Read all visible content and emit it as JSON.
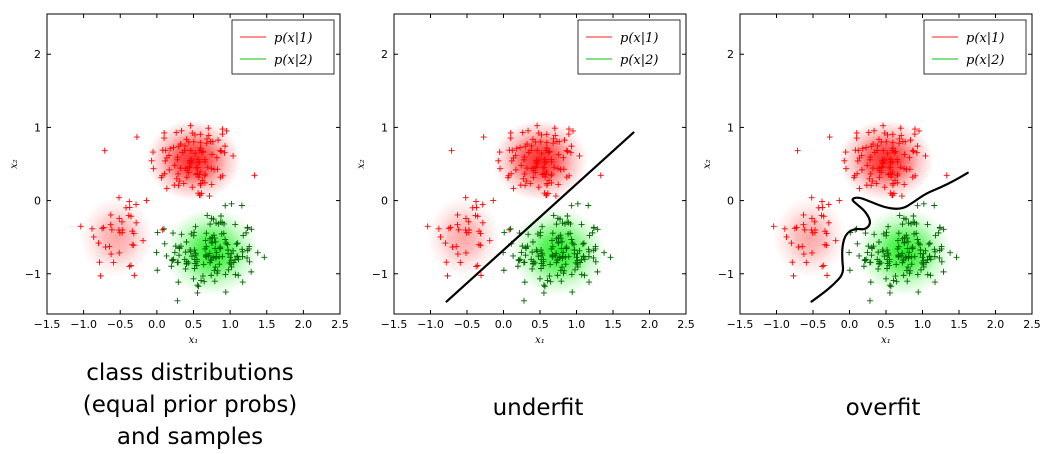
{
  "chart_data": [
    {
      "type": "scatter",
      "xlim": [
        -1.5,
        2.5
      ],
      "ylim": [
        -1.55,
        2.55
      ],
      "xticks": [
        -1.5,
        -1.0,
        -0.5,
        0.0,
        0.5,
        1.0,
        1.5,
        2.0,
        2.5
      ],
      "yticks": [
        -1,
        0,
        1,
        2
      ],
      "xtick_labels": [
        "−1.5",
        "−1.0",
        "−0.5",
        "0.0",
        "0.5",
        "1.0",
        "1.5",
        "2.0",
        "2.5"
      ],
      "ytick_labels": [
        "−1",
        "0",
        "1",
        "2"
      ],
      "xlabel": "x₁",
      "ylabel": "x₂",
      "legend": [
        {
          "label": "p(x|1)",
          "color": "#ff6b6b"
        },
        {
          "label": "p(x|2)",
          "color": "#5cd65c"
        }
      ],
      "legend_position": "top-right",
      "density_blobs": [
        {
          "class": 1,
          "cx": 0.5,
          "cy": 0.55,
          "rx": 0.65,
          "ry": 0.55,
          "color": "#ff0000",
          "opacity": 0.85
        },
        {
          "class": 1,
          "cx": -0.55,
          "cy": -0.5,
          "rx": 0.5,
          "ry": 0.55,
          "color": "#ff0000",
          "opacity": 0.35
        },
        {
          "class": 2,
          "cx": 0.75,
          "cy": -0.7,
          "rx": 0.65,
          "ry": 0.6,
          "color": "#00ee00",
          "opacity": 0.85
        }
      ],
      "samples": {
        "class1": {
          "color": "#ff0000",
          "clusters": [
            {
              "cx": 0.5,
              "cy": 0.55,
              "sx": 0.3,
              "sy": 0.28,
              "n": 110
            },
            {
              "cx": -0.5,
              "cy": -0.45,
              "sx": 0.25,
              "sy": 0.33,
              "n": 40
            }
          ]
        },
        "class2": {
          "color": "#006400",
          "clusters": [
            {
              "cx": 0.75,
              "cy": -0.72,
              "sx": 0.3,
              "sy": 0.28,
              "n": 150
            }
          ]
        }
      },
      "boundary": null,
      "caption": [
        "class distributions",
        "(equal prior probs)",
        "and samples"
      ]
    },
    {
      "type": "scatter",
      "xlim": [
        -1.5,
        2.5
      ],
      "ylim": [
        -1.55,
        2.55
      ],
      "xticks": [
        -1.5,
        -1.0,
        -0.5,
        0.0,
        0.5,
        1.0,
        1.5,
        2.0,
        2.5
      ],
      "yticks": [
        -1,
        0,
        1,
        2
      ],
      "xtick_labels": [
        "−1.5",
        "−1.0",
        "−0.5",
        "0.0",
        "0.5",
        "1.0",
        "1.5",
        "2.0",
        "2.5"
      ],
      "ytick_labels": [
        "−1",
        "0",
        "1",
        "2"
      ],
      "xlabel": "x₁",
      "ylabel": "x₂",
      "legend": [
        {
          "label": "p(x|1)",
          "color": "#ff6b6b"
        },
        {
          "label": "p(x|2)",
          "color": "#5cd65c"
        }
      ],
      "legend_position": "top-right",
      "density_blobs": [
        {
          "class": 1,
          "cx": 0.5,
          "cy": 0.55,
          "rx": 0.65,
          "ry": 0.55,
          "color": "#ff0000",
          "opacity": 0.85
        },
        {
          "class": 1,
          "cx": -0.55,
          "cy": -0.5,
          "rx": 0.5,
          "ry": 0.55,
          "color": "#ff0000",
          "opacity": 0.35
        },
        {
          "class": 2,
          "cx": 0.75,
          "cy": -0.7,
          "rx": 0.65,
          "ry": 0.6,
          "color": "#00ee00",
          "opacity": 0.85
        }
      ],
      "samples": {
        "class1": {
          "color": "#ff0000",
          "clusters": [
            {
              "cx": 0.5,
              "cy": 0.55,
              "sx": 0.3,
              "sy": 0.28,
              "n": 110
            },
            {
              "cx": -0.5,
              "cy": -0.45,
              "sx": 0.25,
              "sy": 0.33,
              "n": 40
            }
          ]
        },
        "class2": {
          "color": "#006400",
          "clusters": [
            {
              "cx": 0.75,
              "cy": -0.72,
              "sx": 0.3,
              "sy": 0.28,
              "n": 150
            }
          ]
        }
      },
      "boundary": {
        "type": "line",
        "color": "#000000",
        "points": [
          [
            -0.78,
            -1.38
          ],
          [
            1.78,
            0.93
          ]
        ]
      },
      "caption": [
        "underfit"
      ]
    },
    {
      "type": "scatter",
      "xlim": [
        -1.5,
        2.5
      ],
      "ylim": [
        -1.55,
        2.55
      ],
      "xticks": [
        -1.5,
        -1.0,
        -0.5,
        0.0,
        0.5,
        1.0,
        1.5,
        2.0,
        2.5
      ],
      "yticks": [
        -1,
        0,
        1,
        2
      ],
      "xtick_labels": [
        "−1.5",
        "−1.0",
        "−0.5",
        "0.0",
        "0.5",
        "1.0",
        "1.5",
        "2.0",
        "2.5"
      ],
      "ytick_labels": [
        "−1",
        "0",
        "1",
        "2"
      ],
      "xlabel": "x₁",
      "ylabel": "x₂",
      "legend": [
        {
          "label": "p(x|1)",
          "color": "#ff6b6b"
        },
        {
          "label": "p(x|2)",
          "color": "#5cd65c"
        }
      ],
      "legend_position": "top-right",
      "density_blobs": [
        {
          "class": 1,
          "cx": 0.5,
          "cy": 0.55,
          "rx": 0.65,
          "ry": 0.55,
          "color": "#ff0000",
          "opacity": 0.85
        },
        {
          "class": 1,
          "cx": -0.55,
          "cy": -0.5,
          "rx": 0.5,
          "ry": 0.55,
          "color": "#ff0000",
          "opacity": 0.35
        },
        {
          "class": 2,
          "cx": 0.75,
          "cy": -0.7,
          "rx": 0.65,
          "ry": 0.6,
          "color": "#00ee00",
          "opacity": 0.85
        }
      ],
      "samples": {
        "class1": {
          "color": "#ff0000",
          "clusters": [
            {
              "cx": 0.5,
              "cy": 0.55,
              "sx": 0.3,
              "sy": 0.28,
              "n": 110
            },
            {
              "cx": -0.5,
              "cy": -0.45,
              "sx": 0.25,
              "sy": 0.33,
              "n": 40
            }
          ]
        },
        "class2": {
          "color": "#006400",
          "clusters": [
            {
              "cx": 0.75,
              "cy": -0.72,
              "sx": 0.3,
              "sy": 0.28,
              "n": 150
            }
          ]
        }
      },
      "boundary": {
        "type": "curve",
        "color": "#000000",
        "points": [
          [
            -0.52,
            -1.38
          ],
          [
            -0.38,
            -1.28
          ],
          [
            -0.22,
            -1.15
          ],
          [
            -0.08,
            -1.0
          ],
          [
            -0.1,
            -0.82
          ],
          [
            -0.1,
            -0.62
          ],
          [
            -0.05,
            -0.45
          ],
          [
            0.08,
            -0.38
          ],
          [
            0.22,
            -0.4
          ],
          [
            0.3,
            -0.3
          ],
          [
            0.22,
            -0.15
          ],
          [
            0.1,
            -0.05
          ],
          [
            0.02,
            0.02
          ],
          [
            0.12,
            0.05
          ],
          [
            0.3,
            -0.02
          ],
          [
            0.5,
            -0.1
          ],
          [
            0.72,
            -0.12
          ],
          [
            0.88,
            -0.02
          ],
          [
            1.05,
            0.1
          ],
          [
            1.25,
            0.18
          ],
          [
            1.45,
            0.28
          ],
          [
            1.62,
            0.38
          ]
        ]
      },
      "caption": [
        "overfit"
      ]
    }
  ]
}
